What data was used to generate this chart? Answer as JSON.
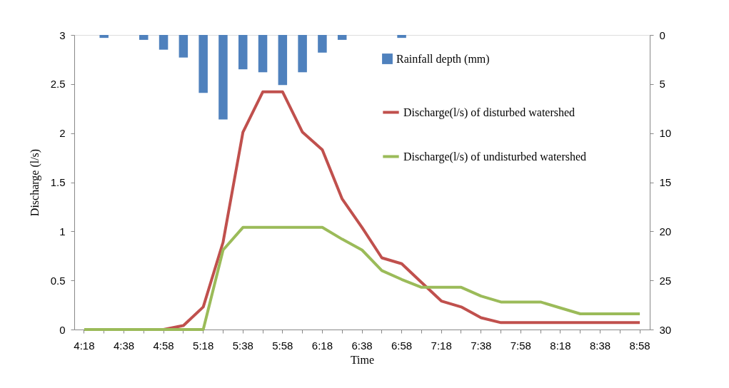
{
  "chart_data": {
    "type": "line",
    "xlabel": "Time",
    "ylabel": "Discharge (l/s)",
    "categories": [
      "4:18",
      null,
      "4:38",
      null,
      "4:58",
      null,
      "5:18",
      null,
      "5:38",
      null,
      "5:58",
      null,
      "6:18",
      null,
      "6:38",
      null,
      "6:58",
      null,
      "7:18",
      null,
      "7:38",
      null,
      "7:58",
      null,
      "8:18",
      null,
      "8:38",
      null,
      "8:58"
    ],
    "ylim": [
      0,
      3
    ],
    "yticks": [
      0,
      0.5,
      1,
      1.5,
      2,
      2.5,
      3
    ],
    "y2lim": [
      30,
      0
    ],
    "y2ticks": [
      0,
      5,
      10,
      15,
      20,
      25,
      30
    ],
    "legend": "right",
    "grid": false,
    "series": [
      {
        "name": "Rainfall depth (mm)",
        "type": "bar",
        "axis": "y2",
        "color": "#4f81bd",
        "values": [
          null,
          0.3,
          null,
          0.5,
          1.5,
          2.3,
          5.9,
          8.6,
          3.5,
          3.8,
          5.1,
          3.8,
          1.8,
          0.5,
          null,
          null,
          0.3,
          null,
          null,
          null,
          null,
          null,
          null,
          null,
          null,
          null,
          null,
          null,
          null
        ]
      },
      {
        "name": "Discharge(l/s) of disturbed watershed",
        "color": "#c0504d",
        "values": [
          null,
          null,
          null,
          null,
          0,
          0.04,
          0.23,
          0.89,
          2.01,
          2.42,
          2.42,
          2.01,
          1.83,
          1.33,
          1.04,
          0.73,
          0.67,
          0.48,
          0.29,
          0.23,
          0.12,
          0.07,
          0.07,
          0.07,
          0.07,
          0.07,
          0.07,
          0.07,
          0.07
        ]
      },
      {
        "name": "Discharge(l/s) of undisturbed watershed",
        "color": "#9bbb59",
        "values": [
          0,
          0,
          0,
          0,
          0,
          0,
          0,
          0.81,
          1.04,
          1.04,
          1.04,
          1.04,
          1.04,
          0.92,
          0.81,
          0.6,
          0.51,
          0.43,
          0.43,
          0.43,
          0.34,
          0.28,
          0.28,
          0.28,
          0.22,
          0.16,
          0.16,
          0.16,
          0.16
        ]
      }
    ]
  }
}
